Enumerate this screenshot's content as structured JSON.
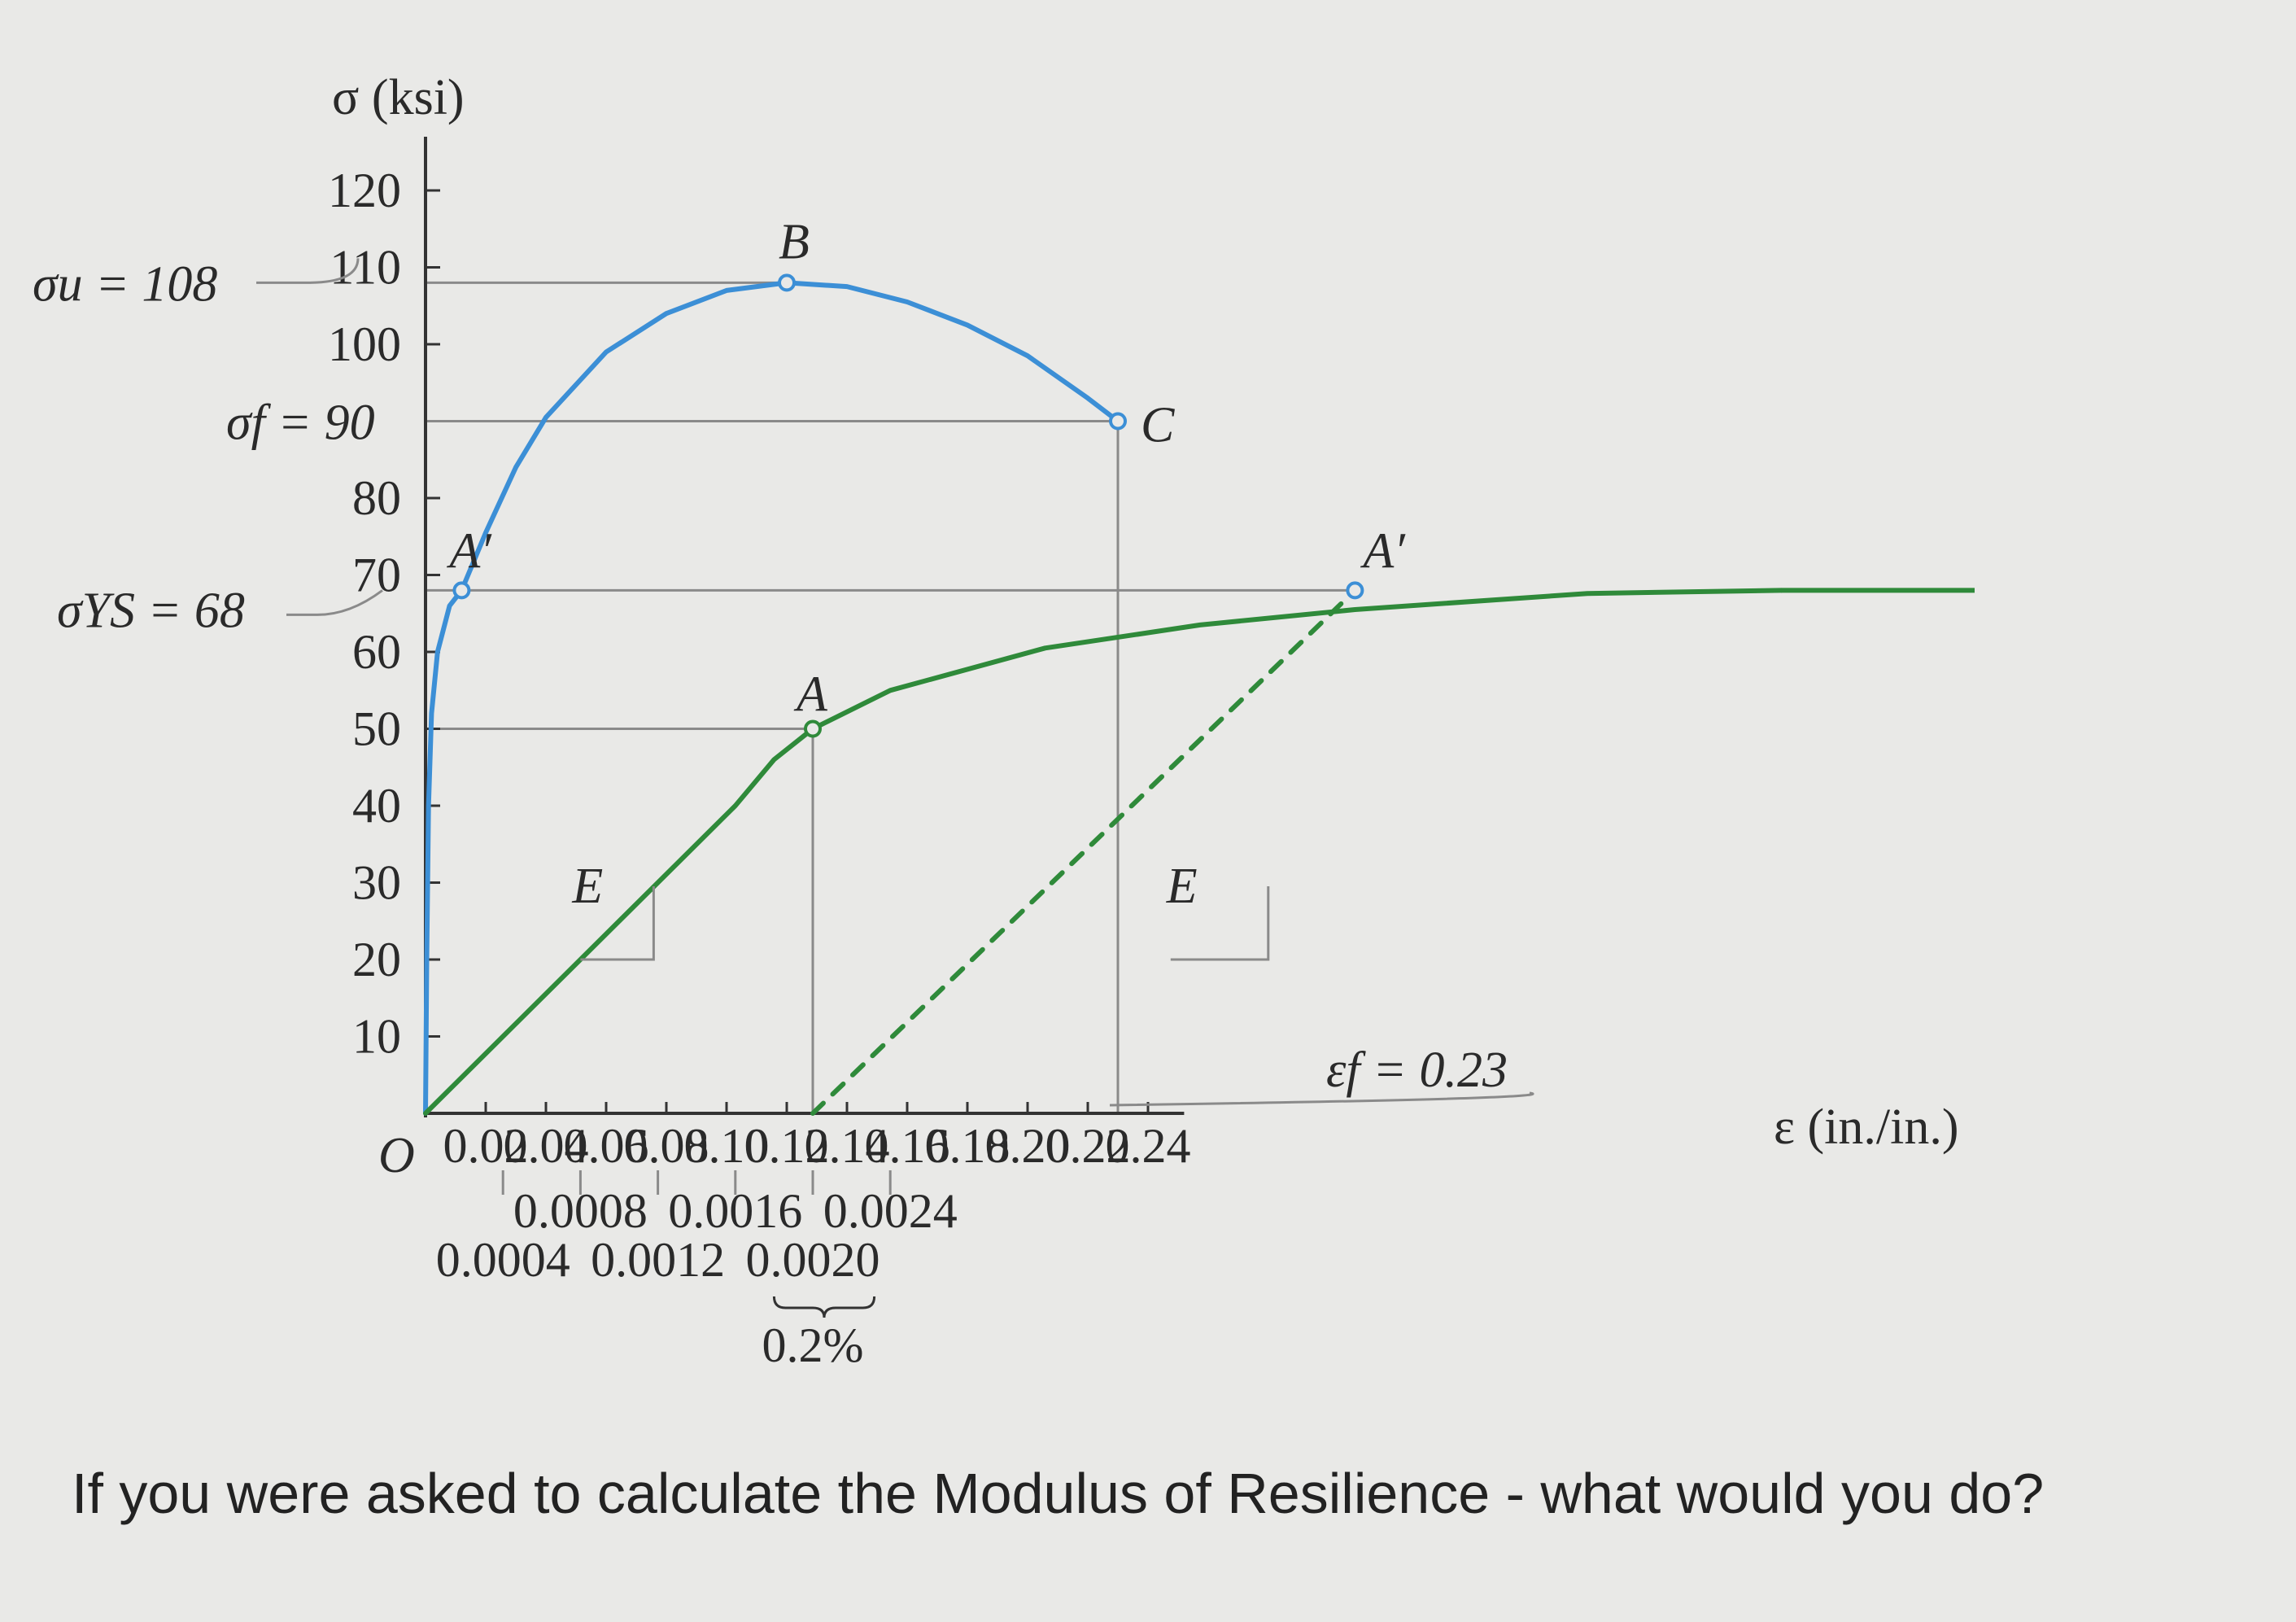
{
  "chart_data": {
    "type": "line",
    "xlabel": "ε (in./in.)",
    "ylabel": "σ (ksi)",
    "origin_label": "O",
    "xlim": [
      0,
      0.26
    ],
    "ylim": [
      0,
      125
    ],
    "y_ticks": [
      10,
      20,
      30,
      40,
      50,
      60,
      70,
      80,
      100,
      110,
      120
    ],
    "x_ticks": [
      0.02,
      0.04,
      0.06,
      0.08,
      0.1,
      0.12,
      0.14,
      0.16,
      0.18,
      0.2,
      0.22,
      0.24
    ],
    "x_tick_labels": [
      "0.02",
      "0.04",
      "0.06",
      "0.08",
      "0.10",
      "0.12",
      "0.14",
      "0.16",
      "0.18",
      "0.20",
      "0.22",
      "0.24"
    ],
    "y_tick_labels": [
      "10",
      "20",
      "30",
      "40",
      "50",
      "60",
      "70",
      "80",
      "100",
      "110",
      "120"
    ],
    "small_strain_ticks": [
      "0.0004",
      "0.0008",
      "0.0012",
      "0.0016",
      "0.0020",
      "0.0024"
    ],
    "small_strain_note": "0.2%",
    "series": [
      {
        "color": "#3c8fd6",
        "x": [
          0.0,
          0.0004,
          0.001,
          0.002,
          0.004,
          0.008,
          0.012,
          0.02,
          0.03,
          0.04,
          0.06,
          0.08,
          0.1,
          0.12,
          0.14,
          0.16,
          0.18,
          0.2,
          0.22,
          0.23
        ],
        "y": [
          0,
          20,
          40,
          52,
          60,
          66,
          68,
          75.5,
          84,
          90.5,
          99,
          104,
          107,
          108,
          107.5,
          105.5,
          102.5,
          98.5,
          93,
          90
        ]
      },
      {
        "color": "#2f8a3a",
        "x": [
          0.0,
          0.0004,
          0.0008,
          0.0012,
          0.0016,
          0.0018,
          0.002,
          0.0024,
          0.0032,
          0.004,
          0.0048,
          0.006,
          0.007
        ],
        "y": [
          0,
          10,
          20,
          30,
          40,
          46,
          50,
          55,
          60.5,
          63.5,
          65.5,
          67.6,
          68
        ]
      },
      {
        "color": "#2f8a3a",
        "dashed": true,
        "x": [
          0.002,
          0.0048
        ],
        "y": [
          0,
          68
        ]
      }
    ],
    "annotations": {
      "sigma_u": "σu = 108",
      "sigma_f": "σf = 90",
      "sigma_ys": "σYS = 68",
      "eps_f": "εf = 0.23",
      "point_B": "B",
      "point_C": "C",
      "point_A": "A",
      "point_A_prime_1": "A′",
      "point_A_prime_2": "A′",
      "slope_E_1": "E",
      "slope_E_2": "E"
    },
    "reference_lines": {
      "sigma_u": 108,
      "sigma_f": 90,
      "sigma_ys": 68,
      "proportional_limit": 50,
      "eps_f": 0.23
    }
  },
  "question": "If you were asked to calculate the Modulus of Resilience - what would you do?",
  "colors": {
    "blue_curve": "#3c8fd6",
    "green_curve": "#2f8a3a",
    "grid": "#8a8a8a",
    "axis": "#333333"
  }
}
